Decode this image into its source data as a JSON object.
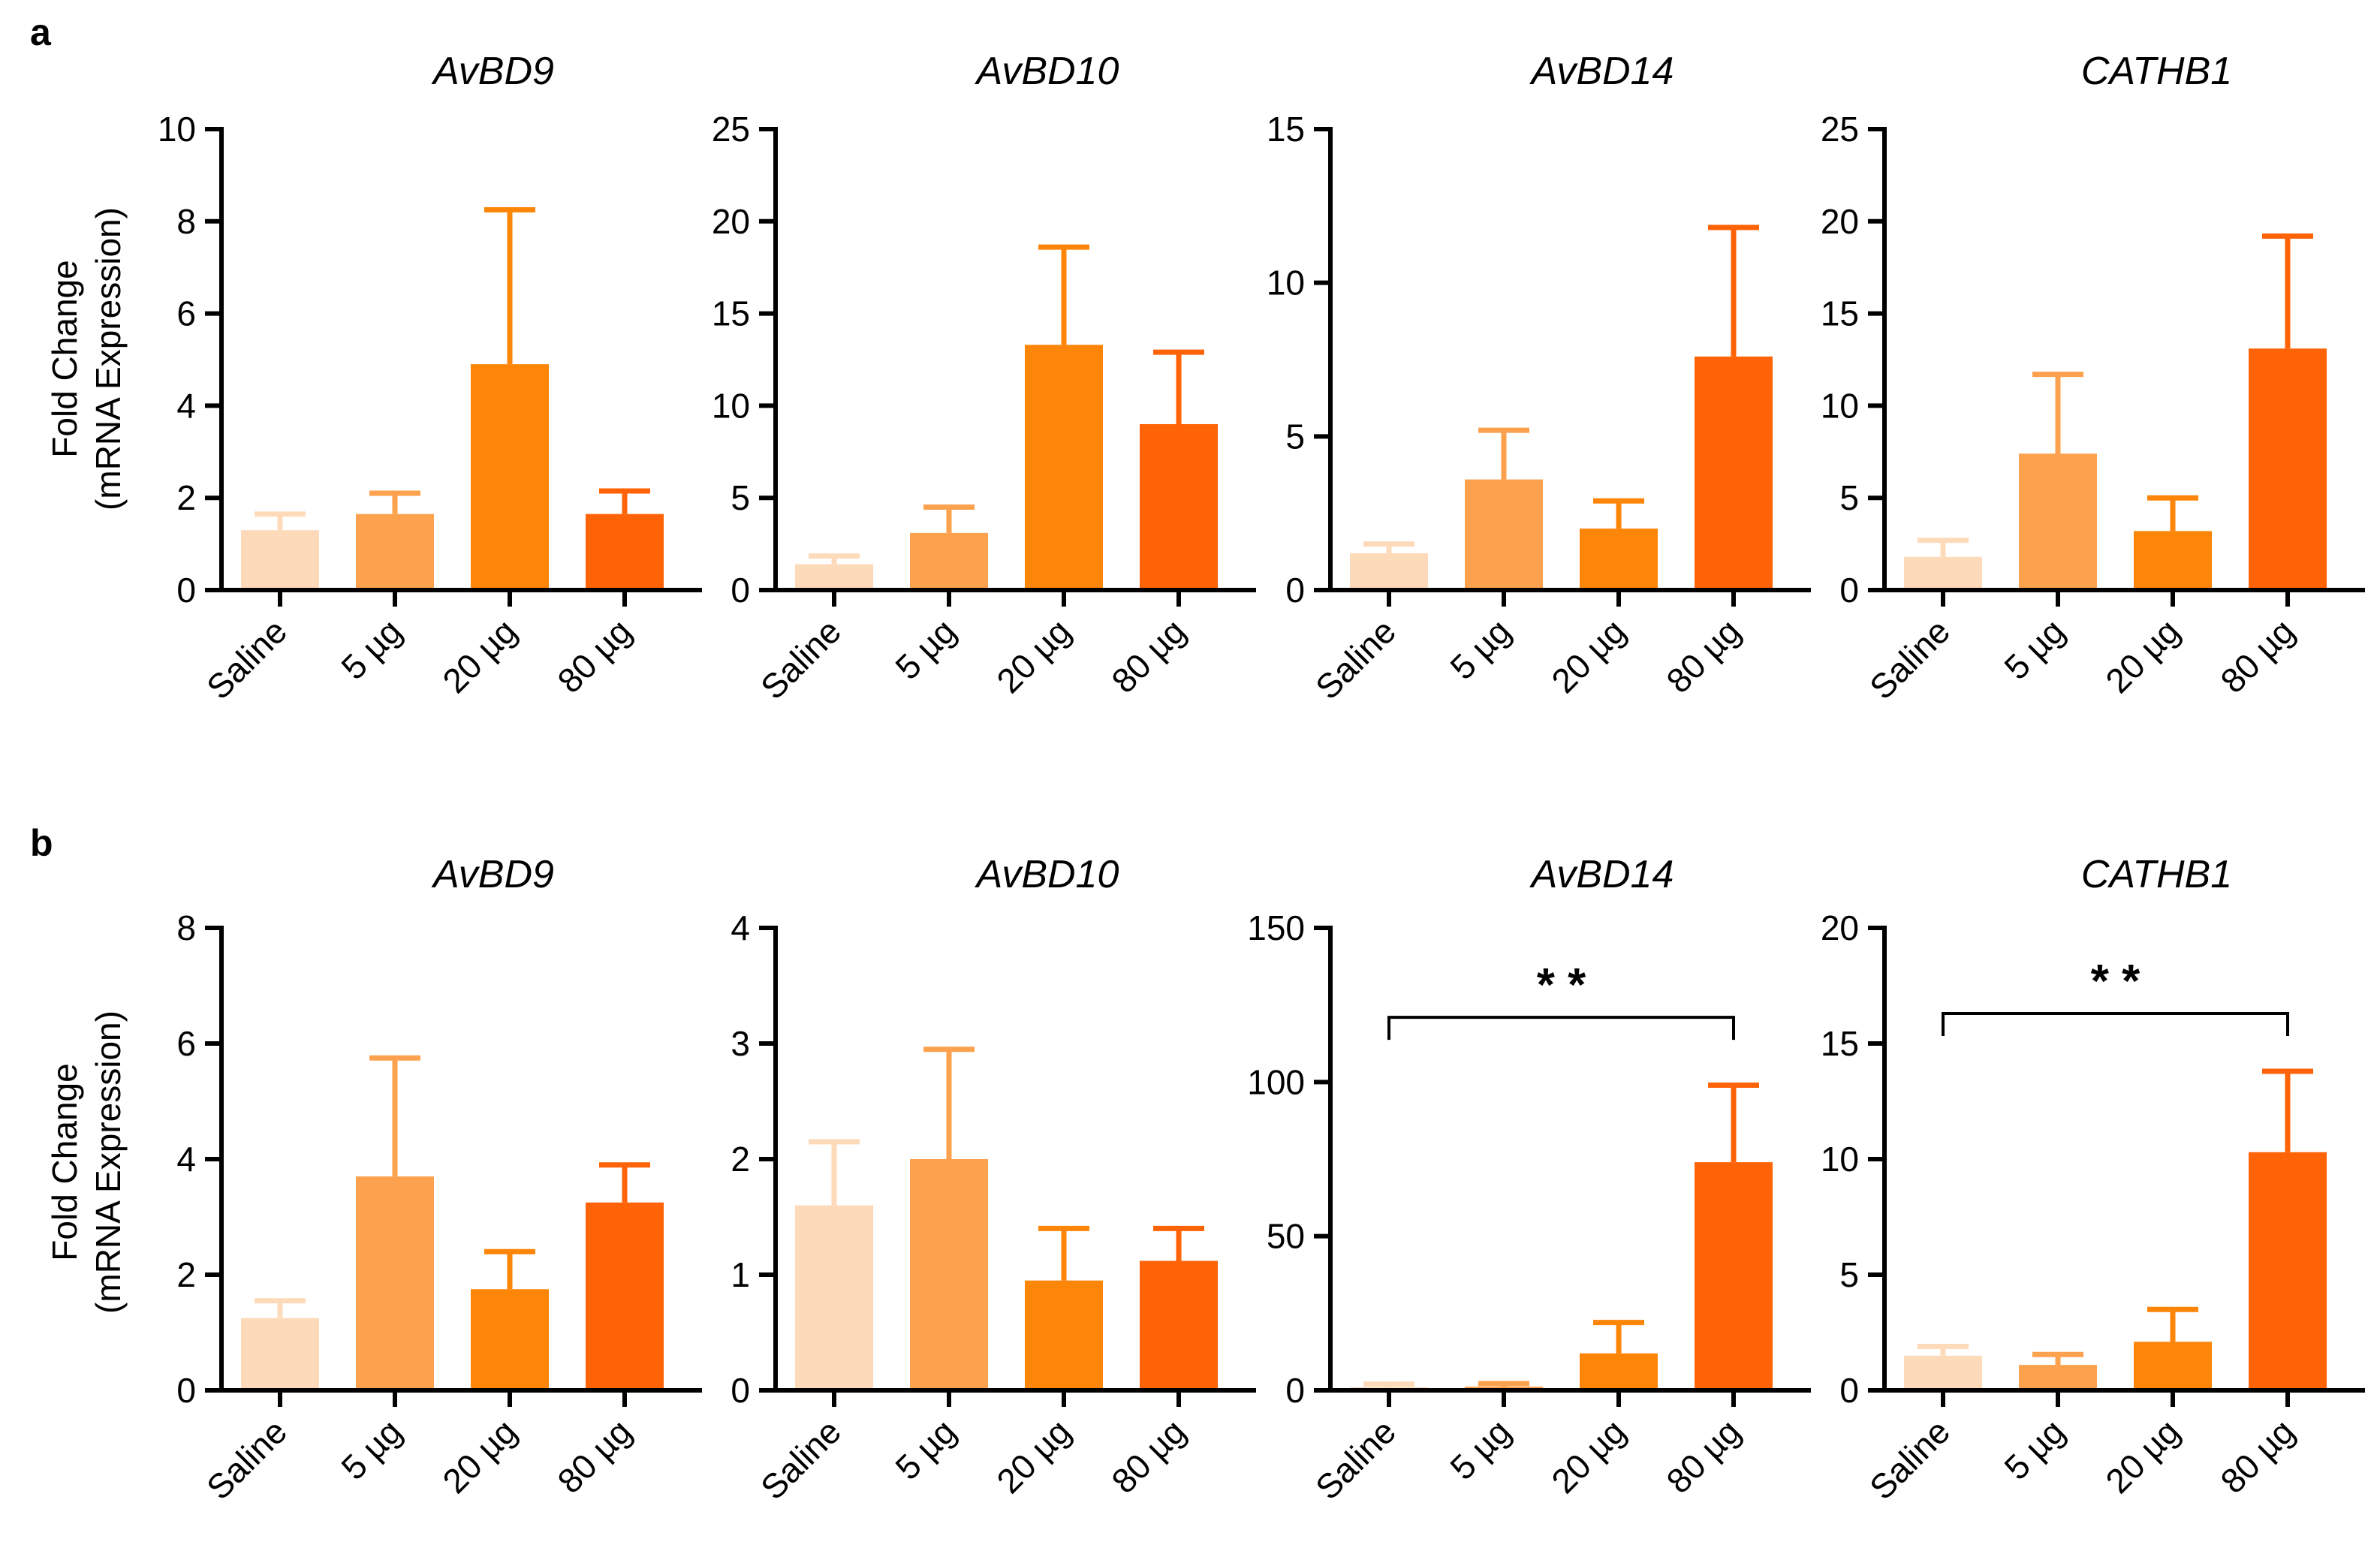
{
  "chart_data": [
    {
      "panel": "a",
      "type": "bar",
      "title": "AvBD9",
      "ylabel_line1": "Fold Change",
      "ylabel_line2": "(mRNA Expression)",
      "categories": [
        "Saline",
        "5 µg",
        "20 µg",
        "80 µg"
      ],
      "values": [
        1.3,
        1.65,
        4.9,
        1.65
      ],
      "errors": [
        0.35,
        0.45,
        3.35,
        0.5
      ],
      "ylim": [
        0,
        10
      ],
      "yticks": [
        0,
        2,
        4,
        6,
        8,
        10
      ],
      "colors": [
        "#FDDBBA",
        "#FCA14D",
        "#FD8508",
        "#FF6307"
      ]
    },
    {
      "panel": "a",
      "type": "bar",
      "title": "AvBD10",
      "categories": [
        "Saline",
        "5 µg",
        "20 µg",
        "80 µg"
      ],
      "values": [
        1.4,
        3.1,
        13.3,
        9.0
      ],
      "errors": [
        0.45,
        1.4,
        5.3,
        3.9
      ],
      "ylim": [
        0,
        25
      ],
      "yticks": [
        0,
        5,
        10,
        15,
        20,
        25
      ],
      "colors": [
        "#FDDBBA",
        "#FCA14D",
        "#FD8508",
        "#FF6307"
      ]
    },
    {
      "panel": "a",
      "type": "bar",
      "title": "AvBD14",
      "categories": [
        "Saline",
        "5 µg",
        "20 µg",
        "80 µg"
      ],
      "values": [
        1.2,
        3.6,
        2.0,
        7.6
      ],
      "errors": [
        0.3,
        1.6,
        0.9,
        4.2
      ],
      "ylim": [
        0,
        15
      ],
      "yticks": [
        0,
        5,
        10,
        15
      ],
      "colors": [
        "#FDDBBA",
        "#FCA14D",
        "#FD8508",
        "#FF6307"
      ]
    },
    {
      "panel": "a",
      "type": "bar",
      "title": "CATHB1",
      "categories": [
        "Saline",
        "5 µg",
        "20 µg",
        "80 µg"
      ],
      "values": [
        1.8,
        7.4,
        3.2,
        13.1
      ],
      "errors": [
        0.9,
        4.3,
        1.8,
        6.1
      ],
      "ylim": [
        0,
        25
      ],
      "yticks": [
        0,
        5,
        10,
        15,
        20,
        25
      ],
      "colors": [
        "#FDDBBA",
        "#FCA14D",
        "#FD8508",
        "#FF6307"
      ]
    },
    {
      "panel": "b",
      "type": "bar",
      "title": "AvBD9",
      "ylabel_line1": "Fold Change",
      "ylabel_line2": "(mRNA Expression)",
      "categories": [
        "Saline",
        "5 µg",
        "20 µg",
        "80 µg"
      ],
      "values": [
        1.25,
        3.7,
        1.75,
        3.25
      ],
      "errors": [
        0.3,
        2.05,
        0.65,
        0.65
      ],
      "ylim": [
        0,
        8
      ],
      "yticks": [
        0,
        2,
        4,
        6,
        8
      ],
      "colors": [
        "#FDDBBA",
        "#FCA14D",
        "#FD8508",
        "#FF6307"
      ]
    },
    {
      "panel": "b",
      "type": "bar",
      "title": "AvBD10",
      "categories": [
        "Saline",
        "5 µg",
        "20 µg",
        "80 µg"
      ],
      "values": [
        1.6,
        2.0,
        0.95,
        1.12
      ],
      "errors": [
        0.55,
        0.95,
        0.45,
        0.28
      ],
      "ylim": [
        0,
        4
      ],
      "yticks": [
        0,
        1,
        2,
        3,
        4
      ],
      "colors": [
        "#FDDBBA",
        "#FCA14D",
        "#FD8508",
        "#FF6307"
      ]
    },
    {
      "panel": "b",
      "type": "bar",
      "title": "AvBD14",
      "categories": [
        "Saline",
        "5 µg",
        "20 µg",
        "80 µg"
      ],
      "values": [
        1.0,
        1.2,
        12.0,
        74.0
      ],
      "errors": [
        1.0,
        1.0,
        10.0,
        25.0
      ],
      "ylim": [
        0,
        150
      ],
      "yticks": [
        0,
        50,
        100,
        150
      ],
      "colors": [
        "#FDDBBA",
        "#FCA14D",
        "#FD8508",
        "#FF6307"
      ],
      "significance": {
        "from": 0,
        "to": 3,
        "label": "* *",
        "y": 121
      }
    },
    {
      "panel": "b",
      "type": "bar",
      "title": "CATHB1",
      "categories": [
        "Saline",
        "5 µg",
        "20 µg",
        "80 µg"
      ],
      "values": [
        1.5,
        1.1,
        2.1,
        10.3
      ],
      "errors": [
        0.4,
        0.45,
        1.4,
        3.5
      ],
      "ylim": [
        0,
        20
      ],
      "yticks": [
        0,
        5,
        10,
        15,
        20
      ],
      "colors": [
        "#FDDBBA",
        "#FCA14D",
        "#FD8508",
        "#FF6307"
      ],
      "significance": {
        "from": 0,
        "to": 3,
        "label": "* *",
        "y": 16.3
      }
    }
  ]
}
